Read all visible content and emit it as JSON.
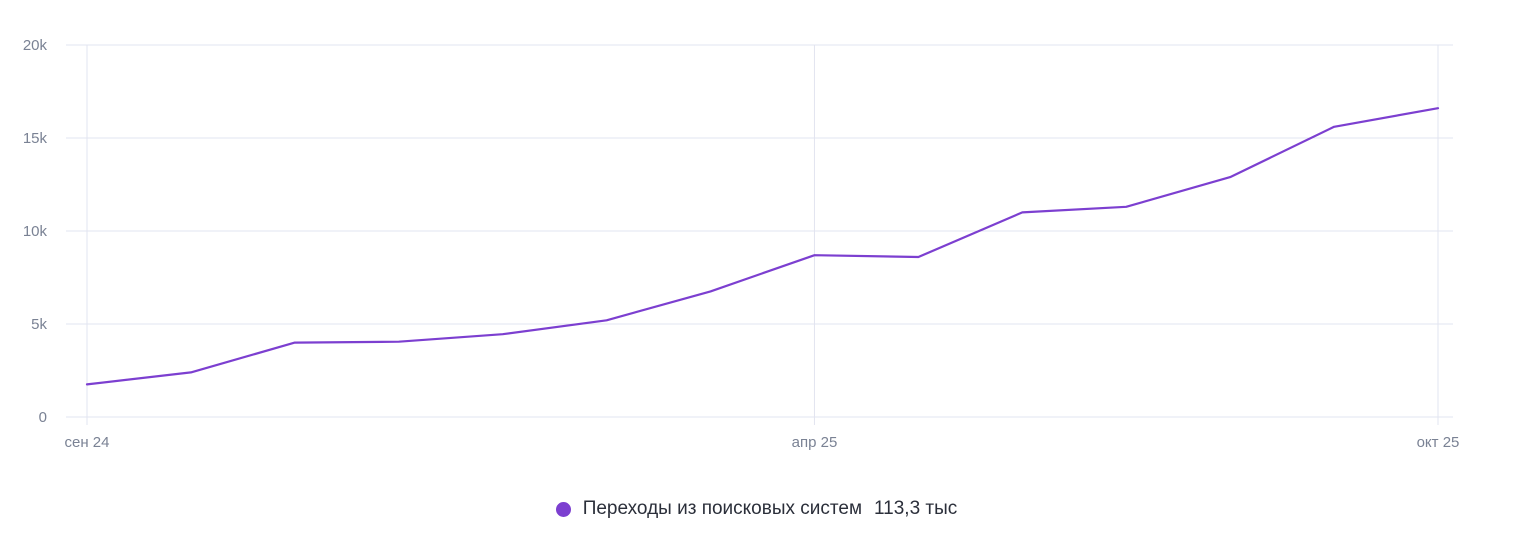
{
  "chart_data": {
    "type": "line",
    "x": [
      "2024-09",
      "2024-10",
      "2024-11",
      "2024-12",
      "2025-01",
      "2025-02",
      "2025-03",
      "2025-04",
      "2025-05",
      "2025-06",
      "2025-07",
      "2025-08",
      "2025-09",
      "2025-10"
    ],
    "x_tick_labels": [
      {
        "label": "сен 24",
        "x": "2024-09"
      },
      {
        "label": "апр 25",
        "x": "2025-04"
      },
      {
        "label": "окт 25",
        "x": "2025-10"
      }
    ],
    "y_tick_labels": [
      "0",
      "5k",
      "10k",
      "15k",
      "20k"
    ],
    "y_ticks": [
      0,
      5000,
      10000,
      15000,
      20000
    ],
    "ylim": [
      0,
      20000
    ],
    "grid": true,
    "legend_position": "bottom-center",
    "series": [
      {
        "name": "Переходы из поисковых систем",
        "total": "113,3 тыс",
        "color": "#7c3fd0",
        "values": [
          1750,
          2400,
          4000,
          4050,
          4450,
          5200,
          6750,
          8700,
          8600,
          11000,
          11300,
          12900,
          15600,
          16600
        ]
      }
    ]
  },
  "colors": {
    "grid": "#e2e4f0",
    "axis_text": "#7a8294",
    "legend_text": "#2b2f3a"
  }
}
